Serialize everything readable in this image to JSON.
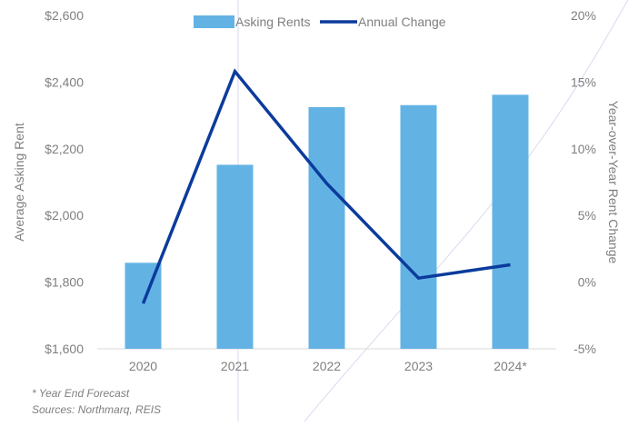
{
  "chart_data": {
    "type": "bar",
    "categories": [
      "2020",
      "2021",
      "2022",
      "2023",
      "2024*"
    ],
    "series": [
      {
        "name": "Asking Rents",
        "type": "bar",
        "axis": "left",
        "color": "#62b3e4",
        "values": [
          1858,
          2152,
          2325,
          2331,
          2362
        ]
      },
      {
        "name": "Annual Change",
        "type": "line",
        "axis": "right",
        "color": "#0b3b9c",
        "values": [
          -1.6,
          15.8,
          7.4,
          0.3,
          1.3
        ]
      }
    ],
    "ylabel": "Average Asking Rent",
    "ylim": [
      1600,
      2600
    ],
    "yticks": [
      "$1,600",
      "$1,800",
      "$2,000",
      "$2,200",
      "$2,400",
      "$2,600"
    ],
    "y2label": "Year-over-Year Rent Change",
    "y2lim": [
      -5,
      20
    ],
    "y2ticks": [
      "-5%",
      "0%",
      "5%",
      "10%",
      "15%",
      "20%"
    ],
    "xlabel": "",
    "legend": "top",
    "grid": false,
    "footnotes": [
      "* Year End Forecast",
      "Sources: Northmarq, REIS"
    ]
  }
}
